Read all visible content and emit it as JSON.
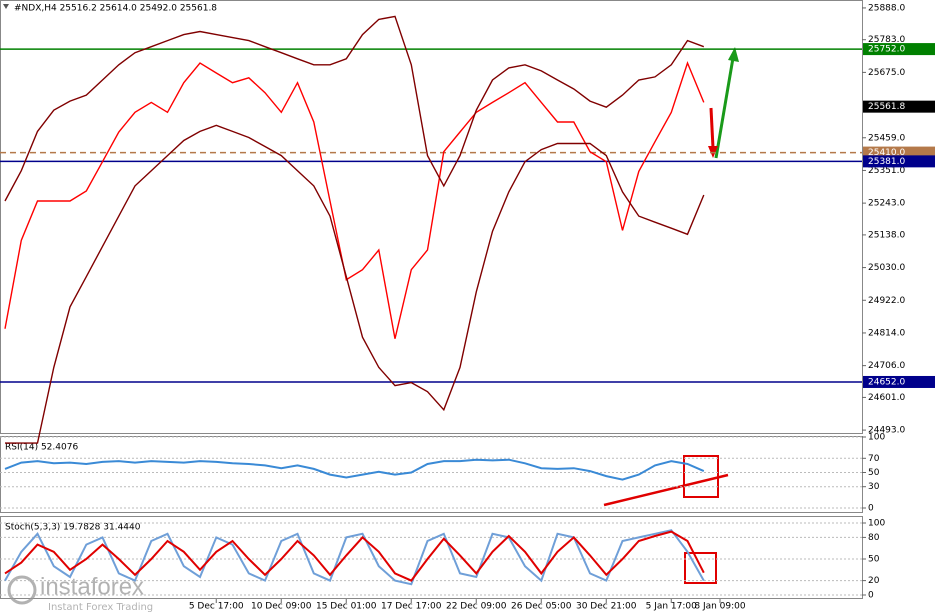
{
  "chart_data": [
    {
      "type": "line",
      "title": "#NDX,H4  25516.2 25614.0 25492.0 25561.8",
      "categories": [
        null,
        null,
        null,
        null,
        null,
        null,
        null,
        null,
        null,
        null,
        null,
        null,
        null,
        "5 Dec 17:00",
        null,
        null,
        null,
        "10 Dec 09:00",
        null,
        null,
        null,
        "15 Dec 01:00",
        null,
        null,
        null,
        "17 Dec 17:00",
        null,
        null,
        null,
        "22 Dec 09:00",
        null,
        null,
        null,
        "26 Dec 05:00",
        null,
        null,
        null,
        "30 Dec 21:00",
        null,
        null,
        null,
        "5 Jan 17:00",
        null,
        null,
        "8 Jan 09:00"
      ],
      "series": [
        {
          "color": "#ff0000",
          "values": [
            24828,
            25120,
            25250,
            25250,
            25250,
            25283,
            25380,
            25478,
            25543,
            25576,
            25543,
            25641,
            25706,
            25673,
            25641,
            25657,
            25608,
            25543,
            25641,
            25511,
            25250,
            24990,
            25023,
            25088,
            24795,
            25023,
            25088,
            25413,
            25478,
            25543,
            25576,
            25608,
            25641,
            25576,
            25511,
            25511,
            25413,
            25380,
            25153,
            25348,
            25446,
            25543,
            25706,
            25576,
            null
          ]
        },
        {
          "color": "#800000",
          "values": [
            25250,
            25350,
            25480,
            25550,
            25580,
            25600,
            25650,
            25700,
            25740,
            25760,
            25780,
            25800,
            25810,
            25800,
            25790,
            25780,
            25760,
            25740,
            25720,
            25700,
            25700,
            25720,
            25800,
            25850,
            25860,
            25700,
            25400,
            25300,
            25400,
            25550,
            25650,
            25690,
            25700,
            25680,
            25650,
            25620,
            25580,
            25560,
            25600,
            25650,
            25660,
            25700,
            25780,
            25760,
            null
          ]
        },
        {
          "color": "#800000",
          "values": [
            24450,
            24450,
            24450,
            24700,
            24900,
            25000,
            25100,
            25200,
            25300,
            25350,
            25400,
            25450,
            25480,
            25500,
            25480,
            25460,
            25430,
            25400,
            25350,
            25300,
            25200,
            25000,
            24800,
            24700,
            24640,
            24650,
            24620,
            24560,
            24700,
            24950,
            25150,
            25280,
            25380,
            25420,
            25440,
            25440,
            25440,
            25400,
            25280,
            25200,
            25180,
            25160,
            25140,
            25270,
            null
          ]
        }
      ],
      "ylim": [
        24490,
        25901
      ],
      "yticks": [
        {
          "value": 25888,
          "label": "25888.0"
        },
        {
          "value": 25783,
          "label": "25783.0"
        },
        {
          "value": 25675,
          "label": "25675.0"
        },
        {
          "value": 25459,
          "label": "25459.0"
        },
        {
          "value": 25351,
          "label": "25351.0"
        },
        {
          "value": 25243,
          "label": "25243.0"
        },
        {
          "value": 25138,
          "label": "25138.0"
        },
        {
          "value": 25030,
          "label": "25030.0"
        },
        {
          "value": 24922,
          "label": "24922.0"
        },
        {
          "value": 24814,
          "label": "24814.0"
        },
        {
          "value": 24706,
          "label": "24706.0"
        },
        {
          "value": 24601,
          "label": "24601.0"
        },
        {
          "value": 24493,
          "label": "24493.0"
        }
      ],
      "levels": [
        {
          "value": 25752,
          "label": "25752.0",
          "color": "#008000"
        },
        {
          "value": 25561.8,
          "label": "25561.8",
          "color": "#000000"
        },
        {
          "value": 25410,
          "label": "25410.0",
          "color": "#b4794a",
          "dashed": true
        },
        {
          "value": 25381,
          "label": "25381.0",
          "color": "#00008b"
        },
        {
          "value": 24652,
          "label": "24652.0",
          "color": "#00008b"
        }
      ]
    },
    {
      "type": "line",
      "title": "RSI(14) 52.4076",
      "series": [
        {
          "color": "#3a8ad6",
          "values": [
            55,
            64,
            66,
            63,
            64,
            62,
            65,
            66,
            64,
            66,
            65,
            64,
            66,
            65,
            63,
            62,
            60,
            56,
            60,
            55,
            47,
            43,
            47,
            51,
            47,
            50,
            62,
            66,
            66,
            68,
            67,
            68,
            63,
            56,
            55,
            56,
            52,
            45,
            40,
            47,
            60,
            66,
            62,
            52,
            null
          ]
        }
      ],
      "ylim": [
        0,
        100
      ],
      "yticks": [
        100,
        70,
        50,
        30,
        0
      ],
      "grid": true
    },
    {
      "type": "line",
      "title": "Stoch(5,3,3) 19.7828 31.4440",
      "series": [
        {
          "color": "#6f9fd8",
          "values": [
            20,
            60,
            85,
            40,
            25,
            70,
            80,
            30,
            20,
            75,
            85,
            40,
            25,
            80,
            70,
            30,
            20,
            75,
            85,
            30,
            20,
            80,
            85,
            40,
            20,
            15,
            75,
            85,
            30,
            25,
            85,
            80,
            40,
            20,
            85,
            80,
            30,
            20,
            75,
            80,
            85,
            90,
            60,
            20,
            null
          ]
        },
        {
          "color": "#e00000",
          "values": [
            30,
            45,
            70,
            60,
            35,
            50,
            70,
            50,
            28,
            50,
            75,
            60,
            35,
            60,
            75,
            50,
            28,
            50,
            75,
            55,
            28,
            55,
            80,
            60,
            30,
            20,
            50,
            78,
            55,
            30,
            60,
            82,
            60,
            30,
            60,
            80,
            55,
            28,
            50,
            75,
            82,
            88,
            75,
            31,
            null
          ]
        }
      ],
      "ylim": [
        0,
        100
      ],
      "yticks": [
        100,
        80,
        50,
        20,
        0
      ],
      "grid": true
    }
  ],
  "watermark": {
    "brand": "instaforex",
    "tagline": "Instant Forex Trading"
  }
}
